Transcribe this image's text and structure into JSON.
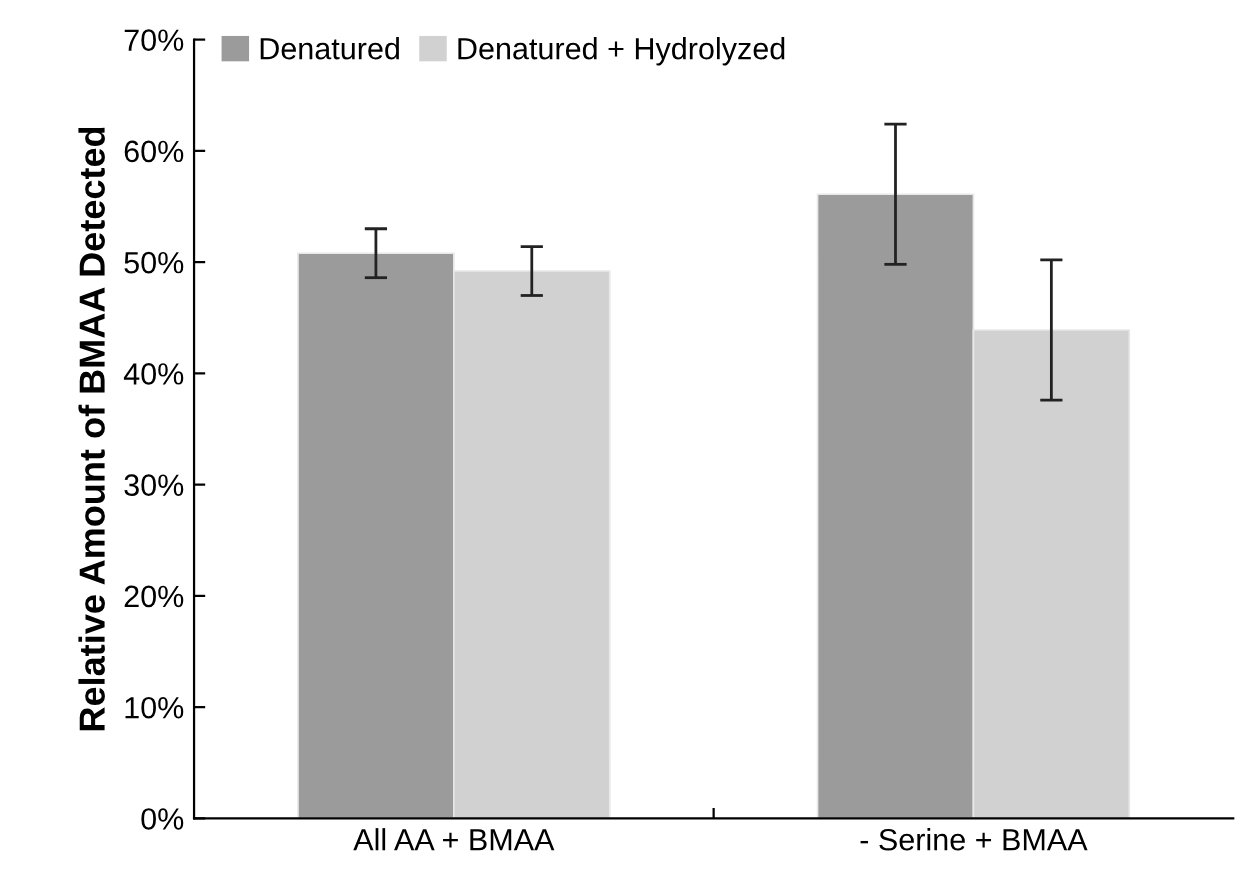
{
  "chart_data": {
    "type": "bar",
    "ylabel": "Relative Amount of BMAA Detected",
    "categories": [
      "All AA + BMAA",
      "- Serine + BMAA"
    ],
    "series": [
      {
        "name": "Denatured",
        "color": "#9b9b9b",
        "values": [
          50.8,
          56.1
        ],
        "errors": [
          2.2,
          6.3
        ]
      },
      {
        "name": "Denatured + Hydrolyzed",
        "color": "#d0d1d0",
        "values": [
          49.2,
          43.9
        ],
        "errors": [
          2.2,
          6.3
        ]
      }
    ],
    "ylim": [
      0,
      70
    ],
    "yticks": [
      {
        "value": 0,
        "label": "0%"
      },
      {
        "value": 10,
        "label": "10%"
      },
      {
        "value": 20,
        "label": "20%"
      },
      {
        "value": 30,
        "label": "30%"
      },
      {
        "value": 40,
        "label": "40%"
      },
      {
        "value": 50,
        "label": "50%"
      },
      {
        "value": 60,
        "label": "60%"
      },
      {
        "value": 70,
        "label": "70%"
      }
    ],
    "grid": false,
    "legend": "top left"
  }
}
